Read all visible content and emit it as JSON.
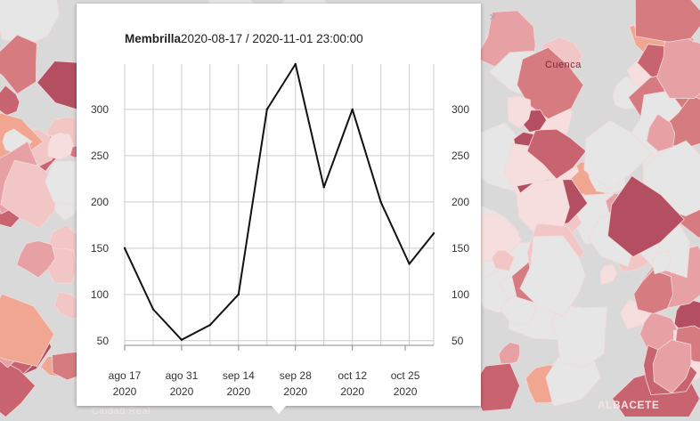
{
  "map": {
    "labels": {
      "cuenca": "Cuenca",
      "albacete": "ALBACETE",
      "ciudad_real": "Ciudad Real"
    },
    "close_glyph": "×",
    "colors": {
      "background": "#d9d9d9",
      "shades": [
        "#c8646f",
        "#d67b80",
        "#e7a0a3",
        "#f2c6c5",
        "#f6dede",
        "#b44f62",
        "#f0a690"
      ]
    }
  },
  "popup": {
    "municipality": "Membrilla",
    "period": "2020-08-17 / 2020-11-01 23:00:00"
  },
  "chart_data": {
    "type": "line",
    "x": [
      "2020-08-17",
      "2020-08-24",
      "2020-08-31",
      "2020-09-07",
      "2020-09-14",
      "2020-09-21",
      "2020-09-28",
      "2020-10-05",
      "2020-10-12",
      "2020-10-19",
      "2020-10-26",
      "2020-11-01"
    ],
    "series": [
      {
        "values": [
          150,
          84,
          51,
          67,
          100,
          300,
          349,
          216,
          300,
          200,
          133,
          166
        ]
      }
    ],
    "x_ticks": [
      {
        "date": "2020-08-17",
        "label": "ago 17",
        "year": "2020"
      },
      {
        "date": "2020-08-31",
        "label": "ago 31",
        "year": "2020"
      },
      {
        "date": "2020-09-14",
        "label": "sep 14",
        "year": "2020"
      },
      {
        "date": "2020-09-28",
        "label": "sep 28",
        "year": "2020"
      },
      {
        "date": "2020-10-12",
        "label": "oct 12",
        "year": "2020"
      },
      {
        "date": "2020-10-25",
        "label": "oct 25",
        "year": "2020"
      }
    ],
    "y_ticks": [
      50,
      100,
      150,
      200,
      250,
      300
    ],
    "ylim": [
      45,
      349
    ],
    "grid": true,
    "line_color": "#111111",
    "grid_color": "#cccccc"
  }
}
